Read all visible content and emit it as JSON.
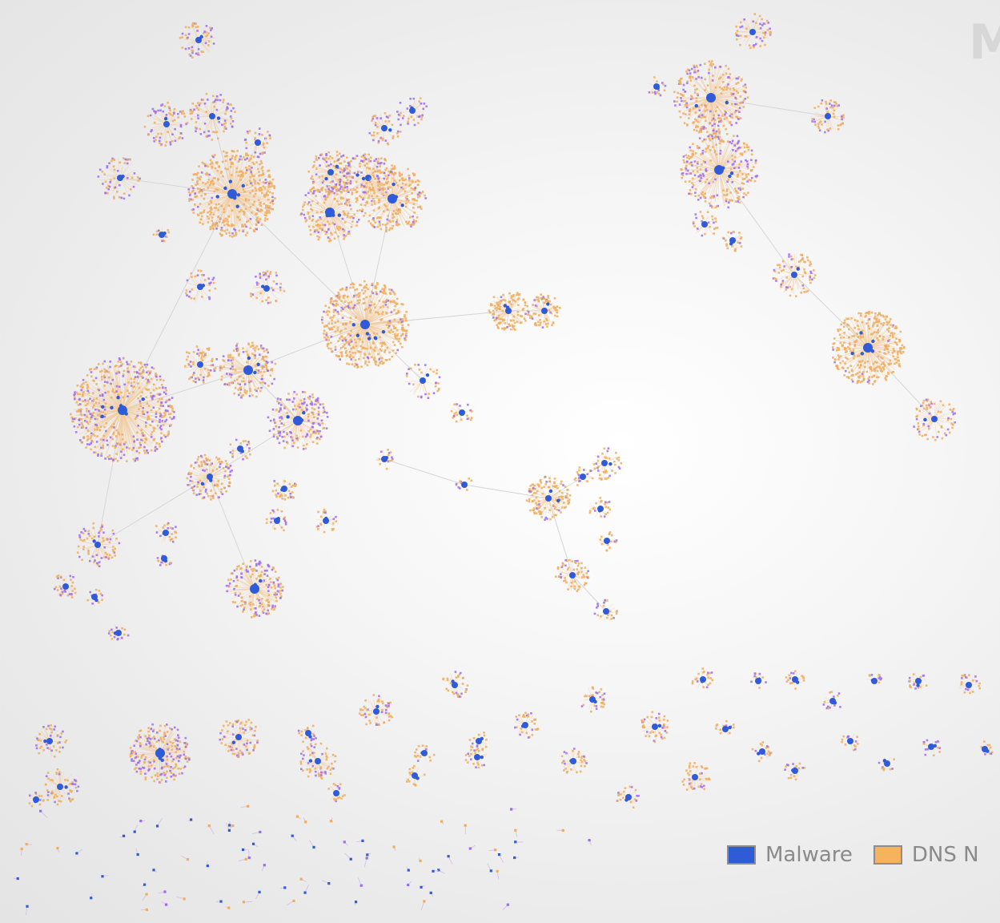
{
  "colors": {
    "malware": "#2f5bd9",
    "dns": "#f0ad5e",
    "purple": "#9b6cf0",
    "edge": "#d6d6d6"
  },
  "watermark": "M",
  "legend": [
    {
      "label": "Malware",
      "color": "#2f5bd9"
    },
    {
      "label": "DNS N",
      "color": "#f6b35e"
    }
  ]
}
